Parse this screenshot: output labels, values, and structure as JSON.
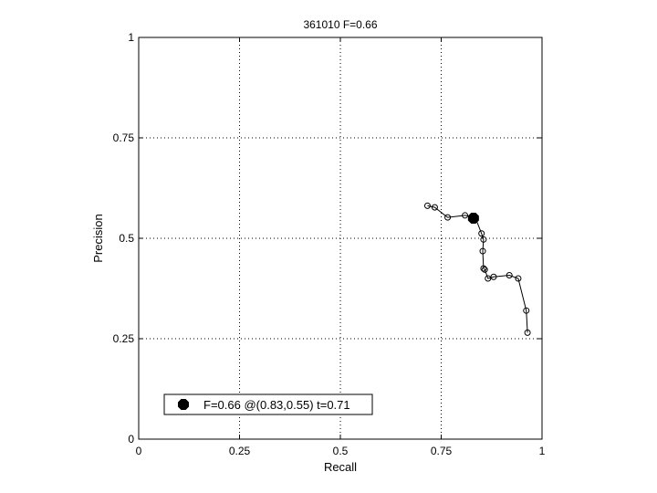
{
  "chart_data": {
    "type": "line",
    "title": "361010 F=0.66",
    "xlabel": "Recall",
    "ylabel": "Precision",
    "xlim": [
      0,
      1
    ],
    "ylim": [
      0,
      1
    ],
    "xticks": [
      "0",
      "0.25",
      "0.5",
      "0.75",
      "1"
    ],
    "yticks": [
      "0",
      "0.25",
      "0.5",
      "0.75",
      "1"
    ],
    "grid": true,
    "legend_position": "bottom-left",
    "series": [
      {
        "values": [
          [
            0.716,
            0.581
          ],
          [
            0.734,
            0.577
          ],
          [
            0.766,
            0.552
          ],
          [
            0.809,
            0.557
          ],
          [
            0.834,
            0.553
          ],
          [
            0.85,
            0.512
          ],
          [
            0.855,
            0.497
          ],
          [
            0.853,
            0.468
          ],
          [
            0.855,
            0.425
          ],
          [
            0.858,
            0.422
          ],
          [
            0.866,
            0.4
          ],
          [
            0.88,
            0.404
          ],
          [
            0.919,
            0.408
          ],
          [
            0.941,
            0.4
          ],
          [
            0.961,
            0.32
          ],
          [
            0.964,
            0.265
          ]
        ]
      }
    ],
    "marker": {
      "x": 0.83,
      "y": 0.55,
      "label": "F=0.66 @(0.83,0.55) t=0.71"
    }
  }
}
